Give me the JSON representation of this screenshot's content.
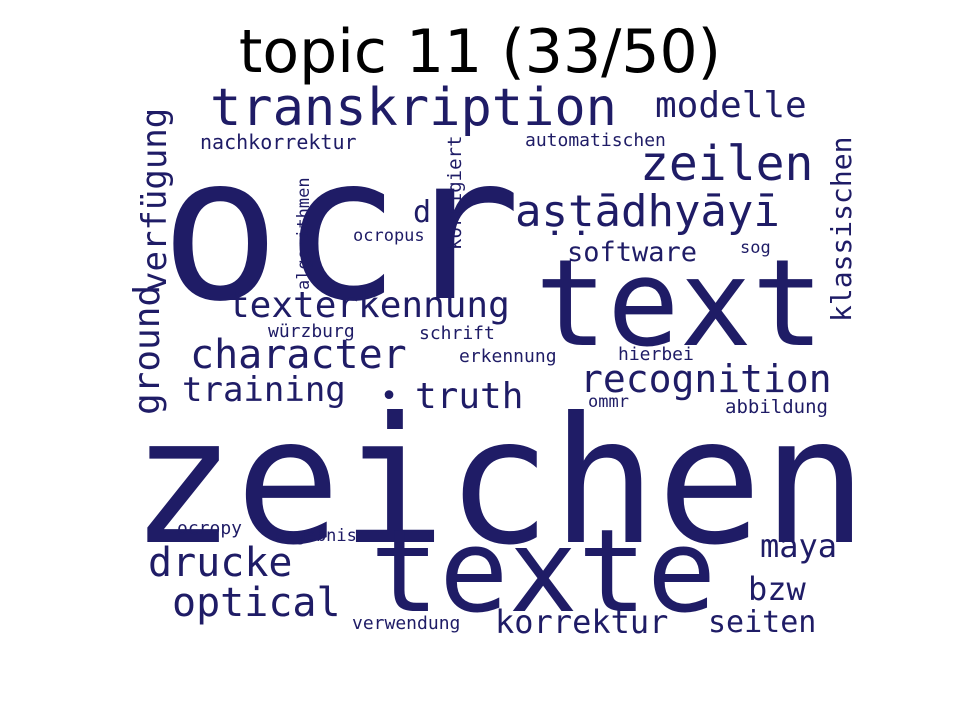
{
  "title": "topic 11 (33/50)",
  "word_color": "#1f1c66",
  "words": [
    {
      "text": "ocr"
    },
    {
      "text": "zeichen"
    },
    {
      "text": "text"
    },
    {
      "text": "texte"
    },
    {
      "text": "transkription"
    },
    {
      "text": "zeilen"
    },
    {
      "text": "aṣṭādhyāyī"
    },
    {
      "text": "modelle"
    },
    {
      "text": "character"
    },
    {
      "text": "texterkennung"
    },
    {
      "text": "recognition"
    },
    {
      "text": "ground"
    },
    {
      "text": "verfügung"
    },
    {
      "text": "training"
    },
    {
      "text": "truth"
    },
    {
      "text": "drucke"
    },
    {
      "text": "optical"
    },
    {
      "text": "korrektur"
    },
    {
      "text": "maya"
    },
    {
      "text": "bzw"
    },
    {
      "text": "seiten"
    },
    {
      "text": "klassischen"
    },
    {
      "text": "software"
    },
    {
      "text": "d"
    },
    {
      "text": "•"
    },
    {
      "text": "nachkorrektur"
    },
    {
      "text": "automatischen"
    },
    {
      "text": "korrigiert"
    },
    {
      "text": "algorithmen"
    },
    {
      "text": "ocropus"
    },
    {
      "text": "sog"
    },
    {
      "text": "würzburg"
    },
    {
      "text": "schrift"
    },
    {
      "text": "erkennung"
    },
    {
      "text": "hierbei"
    },
    {
      "text": "ommr"
    },
    {
      "text": "abbildung"
    },
    {
      "text": "ocropy"
    },
    {
      "text": "ergebnis"
    },
    {
      "text": "verwendung"
    }
  ]
}
